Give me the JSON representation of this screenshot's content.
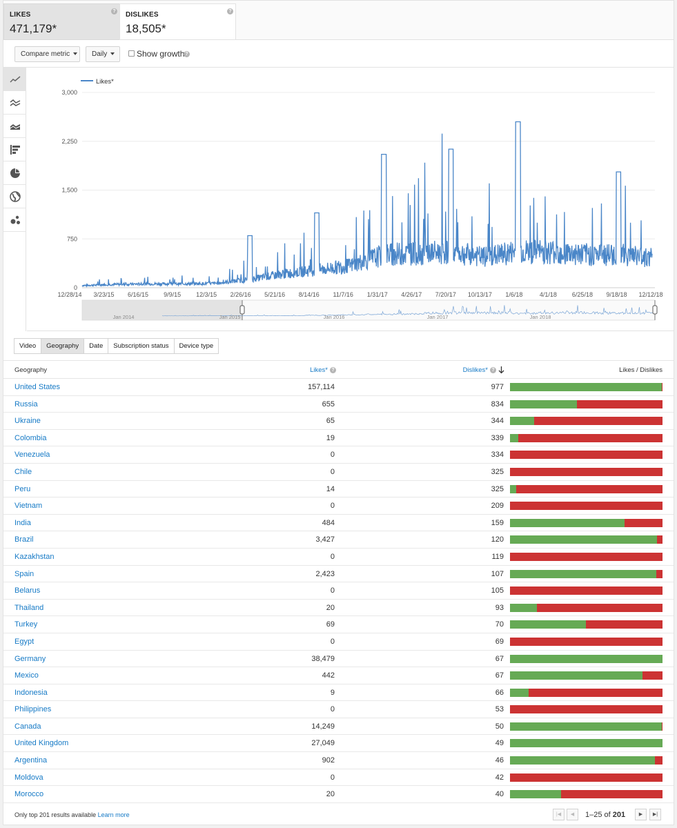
{
  "metrics": {
    "likes": {
      "label": "LIKES",
      "value": "471,179*"
    },
    "dislikes": {
      "label": "DISLIKES",
      "value": "18,505*"
    }
  },
  "controls": {
    "compare_metric": "Compare metric",
    "interval": "Daily",
    "show_growth": "Show growth"
  },
  "chart_types": [
    "line-chart-icon",
    "multi-line-chart-icon",
    "stacked-area-chart-icon",
    "bar-chart-icon",
    "pie-chart-icon",
    "map-globe-icon",
    "bubble-chart-icon"
  ],
  "chart_data": {
    "type": "line",
    "legend": "Likes*",
    "yticks": [
      "3,000",
      "2,250",
      "1,500",
      "750",
      "0"
    ],
    "ylim": [
      0,
      3000
    ],
    "xticks": [
      "12/28/14",
      "3/23/15",
      "6/16/15",
      "9/9/15",
      "12/3/15",
      "2/26/16",
      "5/21/16",
      "8/14/16",
      "11/7/16",
      "1/31/17",
      "4/26/17",
      "7/20/17",
      "10/13/17",
      "1/6/18",
      "4/1/18",
      "6/25/18",
      "9/18/18",
      "12/12/18"
    ],
    "overview_labels": [
      "Jan 2014",
      "Jan 2015",
      "Jan 2016",
      "Jan 2017",
      "Jan 2018"
    ],
    "series": [
      {
        "name": "Likes*",
        "color": "#4a86c8",
        "approx_values_by_tick": [
          40,
          60,
          70,
          70,
          80,
          150,
          250,
          320,
          400,
          600,
          620,
          650,
          550,
          650,
          650,
          600,
          600,
          550
        ],
        "peaks": [
          {
            "x": "2/26/16",
            "y": 800
          },
          {
            "x": "8/14/16",
            "y": 1150
          },
          {
            "x": "1/31/17",
            "y": 2050
          },
          {
            "x": "7/20/17",
            "y": 2130
          },
          {
            "x": "1/6/18",
            "y": 2550
          },
          {
            "x": "9/18/18",
            "y": 1780
          }
        ]
      }
    ]
  },
  "tabs": [
    "Video",
    "Geography",
    "Date",
    "Subscription status",
    "Device type"
  ],
  "table": {
    "headers": {
      "geography": "Geography",
      "likes": "Likes*",
      "dislikes": "Dislikes*",
      "ratio": "Likes / Dislikes"
    },
    "rows": [
      {
        "country": "United States",
        "likes": "157,114",
        "dislikes": "977",
        "like_share": 0.994
      },
      {
        "country": "Russia",
        "likes": "655",
        "dislikes": "834",
        "like_share": 0.44
      },
      {
        "country": "Ukraine",
        "likes": "65",
        "dislikes": "344",
        "like_share": 0.159
      },
      {
        "country": "Colombia",
        "likes": "19",
        "dislikes": "339",
        "like_share": 0.053
      },
      {
        "country": "Venezuela",
        "likes": "0",
        "dislikes": "334",
        "like_share": 0
      },
      {
        "country": "Chile",
        "likes": "0",
        "dislikes": "325",
        "like_share": 0
      },
      {
        "country": "Peru",
        "likes": "14",
        "dislikes": "325",
        "like_share": 0.041
      },
      {
        "country": "Vietnam",
        "likes": "0",
        "dislikes": "209",
        "like_share": 0
      },
      {
        "country": "India",
        "likes": "484",
        "dislikes": "159",
        "like_share": 0.753
      },
      {
        "country": "Brazil",
        "likes": "3,427",
        "dislikes": "120",
        "like_share": 0.966
      },
      {
        "country": "Kazakhstan",
        "likes": "0",
        "dislikes": "119",
        "like_share": 0
      },
      {
        "country": "Spain",
        "likes": "2,423",
        "dislikes": "107",
        "like_share": 0.958
      },
      {
        "country": "Belarus",
        "likes": "0",
        "dislikes": "105",
        "like_share": 0
      },
      {
        "country": "Thailand",
        "likes": "20",
        "dislikes": "93",
        "like_share": 0.177
      },
      {
        "country": "Turkey",
        "likes": "69",
        "dislikes": "70",
        "like_share": 0.496
      },
      {
        "country": "Egypt",
        "likes": "0",
        "dislikes": "69",
        "like_share": 0
      },
      {
        "country": "Germany",
        "likes": "38,479",
        "dislikes": "67",
        "like_share": 0.998
      },
      {
        "country": "Mexico",
        "likes": "442",
        "dislikes": "67",
        "like_share": 0.868
      },
      {
        "country": "Indonesia",
        "likes": "9",
        "dislikes": "66",
        "like_share": 0.12
      },
      {
        "country": "Philippines",
        "likes": "0",
        "dislikes": "53",
        "like_share": 0
      },
      {
        "country": "Canada",
        "likes": "14,249",
        "dislikes": "50",
        "like_share": 0.996
      },
      {
        "country": "United Kingdom",
        "likes": "27,049",
        "dislikes": "49",
        "like_share": 0.998
      },
      {
        "country": "Argentina",
        "likes": "902",
        "dislikes": "46",
        "like_share": 0.951
      },
      {
        "country": "Moldova",
        "likes": "0",
        "dislikes": "42",
        "like_share": 0
      },
      {
        "country": "Morocco",
        "likes": "20",
        "dislikes": "40",
        "like_share": 0.333
      }
    ]
  },
  "footer": {
    "note": "Only top 201 results available",
    "learn_more": "Learn more",
    "range": "1–25",
    "of": "of",
    "total": "201"
  },
  "colors": {
    "like": "#66aa55",
    "dislike": "#cc3333",
    "accent": "#167ac6"
  }
}
